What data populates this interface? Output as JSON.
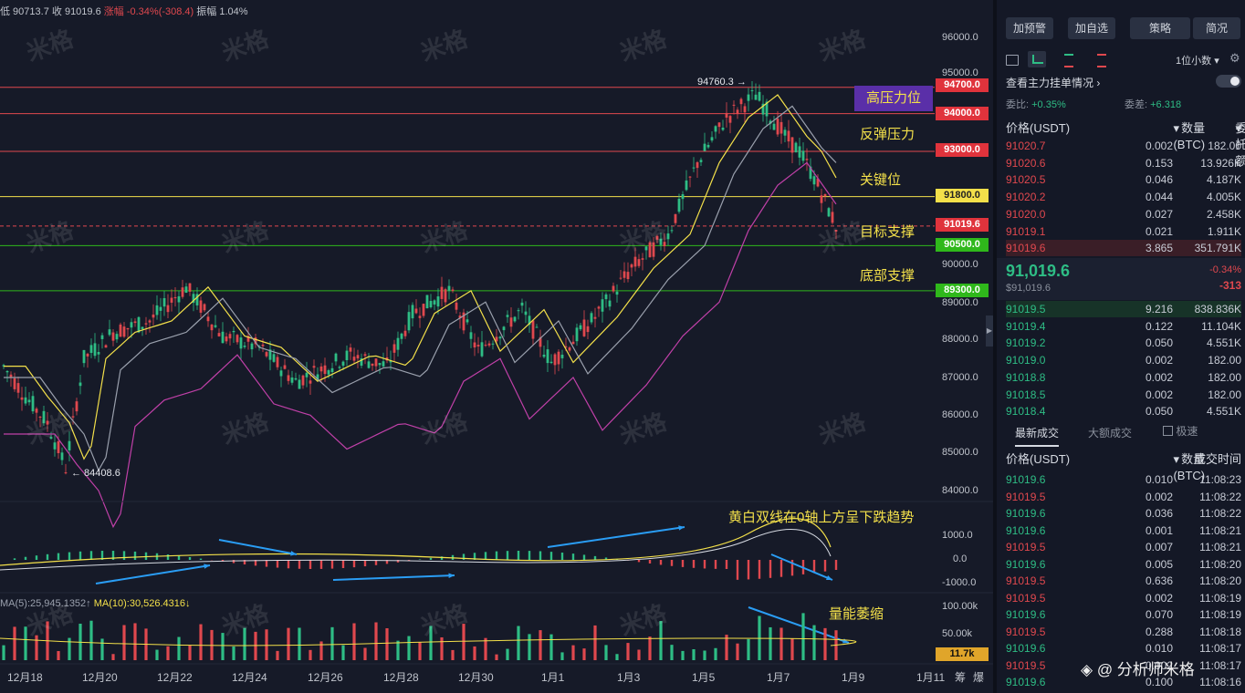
{
  "top_info": {
    "low": "低 90713.7",
    "close": "收 91019.6",
    "change": "涨幅 -0.34%(-308.4)",
    "amplitude": "振幅 1.04%"
  },
  "price_axis": [
    "96000.0",
    "95000.0",
    "90000.0",
    "89000.0",
    "88000.0",
    "87000.0",
    "86000.0",
    "85000.0",
    "84000.0"
  ],
  "levels": [
    {
      "value": "94700.0",
      "label": "高压力位",
      "color": "#e0484e"
    },
    {
      "value": "94000.0",
      "label": "反弹压力",
      "color": "#e0484e"
    },
    {
      "value": "93000.0",
      "label": "关键位",
      "color": "#e0484e"
    },
    {
      "value": "91800.0",
      "label": "",
      "color": "#f3e04a"
    },
    {
      "value": "91019.6",
      "label": "目标支撑",
      "color": "#e0484e"
    },
    {
      "value": "90500.0",
      "label": "",
      "color": "#2fb81b"
    },
    {
      "value": "89300.0",
      "label": "底部支撑",
      "color": "#2fb81b"
    }
  ],
  "peak_label": "94760.3 →",
  "trough_label": "← 84408.6",
  "macd_axis": [
    "1000.0",
    "0.0",
    "-1000.0"
  ],
  "macd_annotation": "黄白双线在0轴上方呈下跌趋势",
  "volume_axis": [
    "100.00k",
    "50.00k"
  ],
  "volume_tag": "11.7k",
  "volume_annotation": "量能萎缩",
  "ma_text": {
    "ma5": "MA(5):25,945.1352↑",
    "ma10": "MA(10):30,526.4316↓"
  },
  "x_axis": [
    "12月18",
    "12月20",
    "12月22",
    "12月24",
    "12月26",
    "12月28",
    "12月30",
    "1月1",
    "1月3",
    "1月5",
    "1月7",
    "1月9",
    "1月11",
    "筹",
    "爆"
  ],
  "watermark": "米格",
  "panel": {
    "buttons": [
      "加预警",
      "加自选",
      "策略",
      "简况"
    ],
    "precision": "1位小数",
    "main_orders_title": "查看主力挂单情况",
    "commission_ratio_label": "委比:",
    "commission_ratio": "+0.35%",
    "commission_diff_label": "委差:",
    "commission_diff": "+6.318",
    "book_headers": [
      "价格(USDT)",
      "数量(BTC)",
      "委托额"
    ],
    "asks": [
      [
        "91020.7",
        "0.002",
        "182.00"
      ],
      [
        "91020.6",
        "0.153",
        "13.926K"
      ],
      [
        "91020.5",
        "0.046",
        "4.187K"
      ],
      [
        "91020.2",
        "0.044",
        "4.005K"
      ],
      [
        "91020.0",
        "0.027",
        "2.458K"
      ],
      [
        "91019.1",
        "0.021",
        "1.911K"
      ],
      [
        "91019.6",
        "3.865",
        "351.791K"
      ]
    ],
    "last_price": "91,019.6",
    "last_price_sub": "$91,019.6",
    "last_change_pct": "-0.34%",
    "last_change": "-313",
    "bids": [
      [
        "91019.5",
        "9.216",
        "838.836K"
      ],
      [
        "91019.4",
        "0.122",
        "11.104K"
      ],
      [
        "91019.2",
        "0.050",
        "4.551K"
      ],
      [
        "91019.0",
        "0.002",
        "182.00"
      ],
      [
        "91018.8",
        "0.002",
        "182.00"
      ],
      [
        "91018.5",
        "0.002",
        "182.00"
      ],
      [
        "91018.4",
        "0.050",
        "4.551K"
      ]
    ],
    "trade_tabs": [
      "最新成交",
      "大额成交"
    ],
    "fast_label": "极速",
    "trade_headers": [
      "价格(USDT)",
      "数量(BTC)",
      "成交时间"
    ],
    "trades": [
      [
        "91019.6",
        "0.010",
        "11:08:23",
        "g"
      ],
      [
        "91019.5",
        "0.002",
        "11:08:22",
        "r"
      ],
      [
        "91019.6",
        "0.036",
        "11:08:22",
        "g"
      ],
      [
        "91019.6",
        "0.001",
        "11:08:21",
        "g"
      ],
      [
        "91019.5",
        "0.007",
        "11:08:21",
        "r"
      ],
      [
        "91019.6",
        "0.005",
        "11:08:20",
        "g"
      ],
      [
        "91019.5",
        "0.636",
        "11:08:20",
        "r"
      ],
      [
        "91019.5",
        "0.002",
        "11:08:19",
        "r"
      ],
      [
        "91019.6",
        "0.070",
        "11:08:19",
        "g"
      ],
      [
        "91019.5",
        "0.288",
        "11:08:18",
        "r"
      ],
      [
        "91019.6",
        "0.010",
        "11:08:17",
        "g"
      ],
      [
        "91019.5",
        "0.002",
        "11:08:17",
        "r"
      ],
      [
        "91019.6",
        "0.100",
        "11:08:16",
        "g"
      ]
    ],
    "author_mark": "@ 分析师米格"
  }
}
